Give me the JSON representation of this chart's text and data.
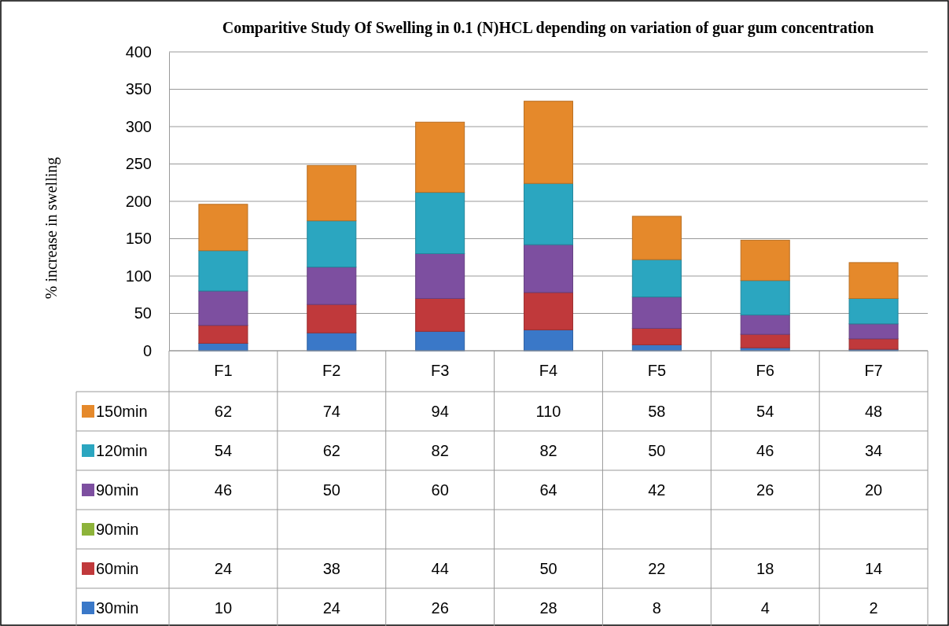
{
  "chart_data": {
    "type": "bar",
    "stacked": true,
    "title": "Comparitive Study Of Swelling in 0.1 (N)HCL depending on variation of guar gum concentration",
    "ylabel": "% increase in swelling",
    "categories": [
      "F1",
      "F2",
      "F3",
      "F4",
      "F5",
      "F6",
      "F7"
    ],
    "series": [
      {
        "name": "30min",
        "color": "#3a78c8",
        "values": [
          10,
          24,
          26,
          28,
          8,
          4,
          2
        ]
      },
      {
        "name": "60min",
        "color": "#c0393b",
        "values": [
          24,
          38,
          44,
          50,
          22,
          18,
          14
        ]
      },
      {
        "name": "90min",
        "color": "#8db33a",
        "values": [
          null,
          null,
          null,
          null,
          null,
          null,
          null
        ]
      },
      {
        "name": "90min",
        "color": "#7d4fa0",
        "values": [
          46,
          50,
          60,
          64,
          42,
          26,
          20
        ]
      },
      {
        "name": "120min",
        "color": "#2ba6c0",
        "values": [
          54,
          62,
          82,
          82,
          50,
          46,
          34
        ]
      },
      {
        "name": "150min",
        "color": "#e5892b",
        "values": [
          62,
          74,
          94,
          110,
          58,
          54,
          48
        ]
      }
    ],
    "ylim": [
      0,
      400
    ],
    "yticks": [
      0,
      50,
      100,
      150,
      200,
      250,
      300,
      350,
      400
    ],
    "grid": "y",
    "legend": "bottom left",
    "data_labels": true
  }
}
